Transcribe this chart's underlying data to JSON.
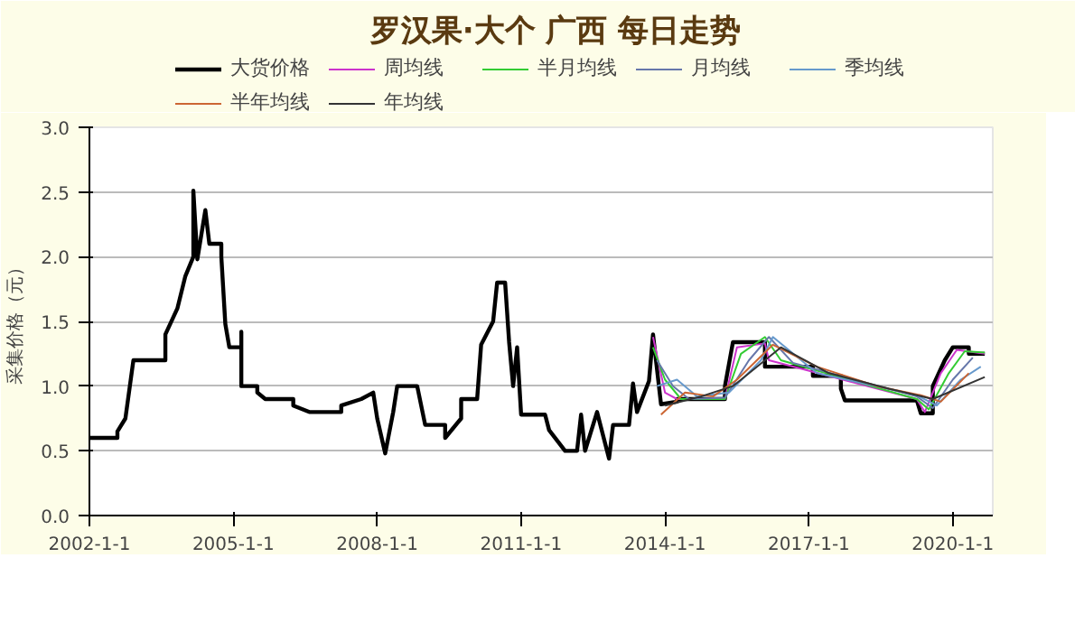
{
  "chart_data": {
    "type": "line",
    "title": "罗汉果·大个 广西 每日走势",
    "ylabel": "采集价格（元）",
    "xlim": [
      "2002-01-01",
      "2020-11-01"
    ],
    "xticks": [
      {
        "value": "2002-01-01",
        "label": "2002-1-1"
      },
      {
        "value": "2005-01-01",
        "label": "2005-1-1"
      },
      {
        "value": "2008-01-01",
        "label": "2008-1-1"
      },
      {
        "value": "2011-01-01",
        "label": "2011-1-1"
      },
      {
        "value": "2014-01-01",
        "label": "2014-1-1"
      },
      {
        "value": "2017-01-01",
        "label": "2017-1-1"
      },
      {
        "value": "2020-01-01",
        "label": "2020-1-1"
      }
    ],
    "ylim": [
      0,
      3
    ],
    "yticks": [
      {
        "value": 0,
        "label": "0.0"
      },
      0.5,
      {
        "value": 1,
        "label": "1.0"
      },
      1.5,
      {
        "value": 2,
        "label": "2.0"
      },
      2.5,
      {
        "value": 3,
        "label": "3.0"
      }
    ],
    "grid": true,
    "legend": "top",
    "line_style": "solid",
    "marker": "none",
    "series": [
      {
        "name": "大货价格",
        "color": "#000000",
        "x": [
          "2002-01",
          "2002-08",
          "2002-08",
          "2002-10",
          "2002-12",
          "2003-08",
          "2003-08",
          "2003-11",
          "2004-01",
          "2004-03",
          "2004-03",
          "2004-04",
          "2004-06",
          "2004-07",
          "2004-10",
          "2004-10",
          "2004-11",
          "2004-12",
          "2005-03",
          "2005-03",
          "2005-03",
          "2005-07",
          "2005-07",
          "2005-09",
          "2006-04",
          "2006-04",
          "2006-08",
          "2007-04",
          "2007-04",
          "2007-09",
          "2007-12",
          "2008-01",
          "2008-03",
          "2008-05",
          "2008-06",
          "2008-11",
          "2009-01",
          "2009-06",
          "2009-06",
          "2009-10",
          "2009-10",
          "2010-02",
          "2010-03",
          "2010-06",
          "2010-07",
          "2010-09",
          "2010-10",
          "2010-11",
          "2010-12",
          "2011-01",
          "2011-07",
          "2011-08",
          "2011-12",
          "2012-03",
          "2012-04",
          "2012-05",
          "2012-08",
          "2012-11",
          "2012-12",
          "2013-04",
          "2013-05",
          "2013-06",
          "2013-09",
          "2013-10",
          "2013-12",
          "2014-04",
          "2014-04",
          "2015-04",
          "2015-04",
          "2015-06",
          "2016-02",
          "2016-02",
          "2017-02",
          "2017-02",
          "2017-09",
          "2017-09",
          "2017-10",
          "2019-04",
          "2019-05",
          "2019-08",
          "2019-08",
          "2019-11",
          "2020-01",
          "2020-05",
          "2020-05",
          "2020-09"
        ],
        "values": [
          0.6,
          0.6,
          0.65,
          0.75,
          1.2,
          1.2,
          1.4,
          1.6,
          1.85,
          2.0,
          2.51,
          1.98,
          2.36,
          2.1,
          2.1,
          2.0,
          1.48,
          1.3,
          1.3,
          1.42,
          1.0,
          1.0,
          0.95,
          0.9,
          0.9,
          0.85,
          0.8,
          0.8,
          0.85,
          0.9,
          0.95,
          0.75,
          0.48,
          0.8,
          1.0,
          1.0,
          0.7,
          0.7,
          0.6,
          0.75,
          0.9,
          0.9,
          1.32,
          1.5,
          1.8,
          1.8,
          1.34,
          1.0,
          1.3,
          0.78,
          0.78,
          0.66,
          0.5,
          0.5,
          0.78,
          0.5,
          0.8,
          0.44,
          0.7,
          0.7,
          1.02,
          0.8,
          1.04,
          1.4,
          0.86,
          0.88,
          0.9,
          0.9,
          1.0,
          1.34,
          1.34,
          1.15,
          1.15,
          1.08,
          1.08,
          0.98,
          0.89,
          0.89,
          0.79,
          0.79,
          1.0,
          1.2,
          1.3,
          1.3,
          1.25,
          1.25
        ]
      },
      {
        "name": "周均线",
        "color": "#cc33cc",
        "x": [
          "2013-10",
          "2014-01",
          "2014-04",
          "2015-04",
          "2015-07",
          "2016-02",
          "2016-03",
          "2019-04",
          "2019-06",
          "2019-10",
          "2020-02",
          "2020-09"
        ],
        "values": [
          1.38,
          0.95,
          0.9,
          0.9,
          1.3,
          1.33,
          1.2,
          0.9,
          0.8,
          1.1,
          1.28,
          1.25
        ]
      },
      {
        "name": "半月均线",
        "color": "#33cc33",
        "x": [
          "2013-10",
          "2014-01",
          "2014-05",
          "2015-04",
          "2015-08",
          "2016-02",
          "2016-06",
          "2019-04",
          "2019-07",
          "2019-12",
          "2020-04",
          "2020-09"
        ],
        "values": [
          1.3,
          1.05,
          0.9,
          0.9,
          1.25,
          1.38,
          1.2,
          0.9,
          0.82,
          1.1,
          1.27,
          1.26
        ]
      },
      {
        "name": "月均线",
        "color": "#6677aa",
        "x": [
          "2013-11",
          "2014-03",
          "2014-07",
          "2015-04",
          "2015-10",
          "2016-03",
          "2016-09",
          "2019-04",
          "2019-08",
          "2020-01",
          "2020-06"
        ],
        "values": [
          1.2,
          1.0,
          0.9,
          0.91,
          1.2,
          1.38,
          1.18,
          0.92,
          0.83,
          1.05,
          1.22
        ]
      },
      {
        "name": "季均线",
        "color": "#6699cc",
        "x": [
          "2013-11",
          "2014-04",
          "2014-09",
          "2015-05",
          "2016-01",
          "2016-04",
          "2017-03",
          "2019-04",
          "2019-09",
          "2020-03",
          "2020-08"
        ],
        "values": [
          1.0,
          1.05,
          0.92,
          0.95,
          1.2,
          1.38,
          1.1,
          0.93,
          0.85,
          1.05,
          1.15
        ]
      },
      {
        "name": "半年均线",
        "color": "#cc6633",
        "x": [
          "2013-12",
          "2014-06",
          "2015-01",
          "2015-07",
          "2016-04",
          "2017-03",
          "2018-06",
          "2019-05",
          "2019-10",
          "2020-05"
        ],
        "values": [
          0.78,
          0.95,
          0.92,
          1.05,
          1.32,
          1.15,
          1.0,
          0.93,
          0.88,
          1.1
        ]
      },
      {
        "name": "年均线",
        "color": "#333333",
        "x": [
          "2014-01",
          "2014-10",
          "2015-06",
          "2016-06",
          "2017-06",
          "2018-09",
          "2019-08",
          "2020-09"
        ],
        "values": [
          0.85,
          0.92,
          1.0,
          1.3,
          1.1,
          0.98,
          0.9,
          1.07
        ]
      }
    ]
  }
}
